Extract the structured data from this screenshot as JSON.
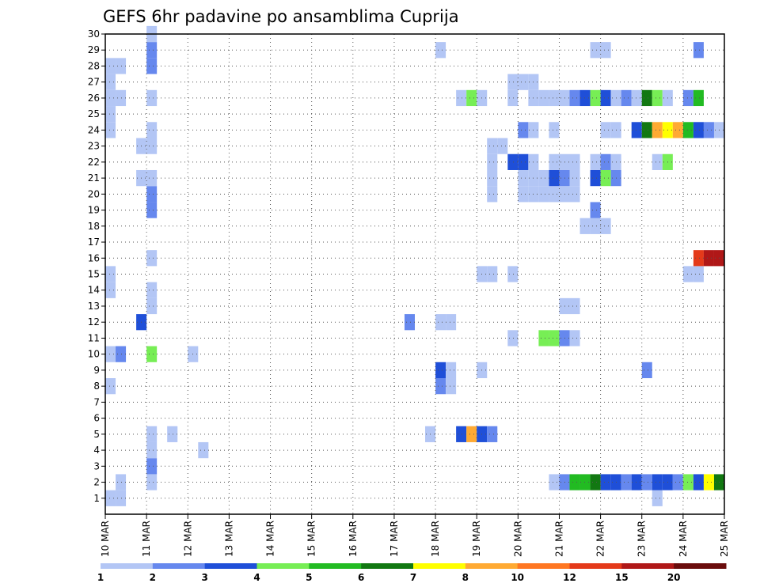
{
  "chart_data": {
    "type": "heatmap",
    "title": "GEFS 6hr padavine po ansamblima Cuprija",
    "xlabel": "",
    "ylabel": "",
    "x_tick_labels": [
      "10 MAR",
      "11 MAR",
      "12 MAR",
      "13 MAR",
      "14 MAR",
      "15 MAR",
      "16 MAR",
      "17 MAR",
      "18 MAR",
      "19 MAR",
      "20 MAR",
      "21 MAR",
      "22 MAR",
      "23 MAR",
      "24 MAR",
      "25 MAR"
    ],
    "x_range_days": [
      0,
      15
    ],
    "y_tick_labels": [
      "1",
      "2",
      "3",
      "4",
      "5",
      "6",
      "7",
      "8",
      "9",
      "10",
      "11",
      "12",
      "13",
      "14",
      "15",
      "16",
      "17",
      "18",
      "19",
      "20",
      "21",
      "22",
      "23",
      "24",
      "25",
      "26",
      "27",
      "28",
      "29",
      "30"
    ],
    "ylim": [
      0,
      30
    ],
    "grid": true,
    "colorbar": {
      "labels": [
        "1",
        "2",
        "3",
        "4",
        "5",
        "6",
        "7",
        "8",
        "10",
        "12",
        "15",
        "20"
      ],
      "colors": [
        "#b3c6f5",
        "#6688ee",
        "#1f4fd8",
        "#77ee55",
        "#22bb22",
        "#127812",
        "#ffff00",
        "#ffaa33",
        "#ff7722",
        "#e43a1a",
        "#b01818",
        "#6a0c0c"
      ]
    },
    "cell_step_days": 0.25,
    "cells": [
      [
        1,
        0.0,
        1
      ],
      [
        1,
        0.25,
        1
      ],
      [
        1,
        13.25,
        1
      ],
      [
        2,
        0.25,
        1
      ],
      [
        2,
        1.0,
        1
      ],
      [
        2,
        10.75,
        1
      ],
      [
        2,
        11.0,
        2
      ],
      [
        2,
        11.25,
        5
      ],
      [
        2,
        11.5,
        5
      ],
      [
        2,
        11.75,
        6
      ],
      [
        2,
        12.0,
        3
      ],
      [
        2,
        12.25,
        3
      ],
      [
        2,
        12.5,
        2
      ],
      [
        2,
        12.75,
        3
      ],
      [
        2,
        13.0,
        2
      ],
      [
        2,
        13.25,
        3
      ],
      [
        2,
        13.5,
        3
      ],
      [
        2,
        13.75,
        2
      ],
      [
        2,
        14.0,
        4
      ],
      [
        2,
        14.25,
        3
      ],
      [
        2,
        14.5,
        7
      ],
      [
        2,
        14.75,
        6
      ],
      [
        3,
        1.0,
        2
      ],
      [
        4,
        1.0,
        1
      ],
      [
        4,
        2.25,
        1
      ],
      [
        5,
        1.0,
        1
      ],
      [
        5,
        1.5,
        1
      ],
      [
        5,
        7.75,
        1
      ],
      [
        5,
        8.5,
        3
      ],
      [
        5,
        8.75,
        8
      ],
      [
        5,
        9.0,
        3
      ],
      [
        5,
        9.25,
        2
      ],
      [
        8,
        0.0,
        1
      ],
      [
        8,
        8.0,
        2
      ],
      [
        8,
        8.25,
        1
      ],
      [
        9,
        8.0,
        3
      ],
      [
        9,
        8.25,
        1
      ],
      [
        9,
        9.0,
        1
      ],
      [
        9,
        13.0,
        2
      ],
      [
        9,
        15.0,
        1
      ],
      [
        10,
        0.0,
        1
      ],
      [
        10,
        0.25,
        2
      ],
      [
        10,
        1.0,
        4
      ],
      [
        10,
        2.0,
        1
      ],
      [
        11,
        9.75,
        1
      ],
      [
        11,
        10.5,
        4
      ],
      [
        11,
        10.75,
        4
      ],
      [
        11,
        11.0,
        2
      ],
      [
        11,
        11.25,
        1
      ],
      [
        12,
        0.75,
        3
      ],
      [
        12,
        7.25,
        2
      ],
      [
        12,
        8.0,
        1
      ],
      [
        12,
        8.25,
        1
      ],
      [
        13,
        1.0,
        1
      ],
      [
        13,
        11.0,
        1
      ],
      [
        13,
        11.25,
        1
      ],
      [
        14,
        0.0,
        1
      ],
      [
        14,
        1.0,
        1
      ],
      [
        15,
        0.0,
        1
      ],
      [
        15,
        9.0,
        1
      ],
      [
        15,
        9.25,
        1
      ],
      [
        15,
        9.75,
        1
      ],
      [
        15,
        14.0,
        1
      ],
      [
        15,
        14.25,
        1
      ],
      [
        16,
        1.0,
        1
      ],
      [
        16,
        14.25,
        10
      ],
      [
        16,
        14.5,
        11
      ],
      [
        16,
        14.75,
        11
      ],
      [
        16,
        15.0,
        7
      ],
      [
        18,
        11.5,
        1
      ],
      [
        18,
        11.75,
        1
      ],
      [
        18,
        12.0,
        1
      ],
      [
        19,
        1.0,
        2
      ],
      [
        19,
        11.75,
        2
      ],
      [
        20,
        1.0,
        2
      ],
      [
        20,
        9.25,
        1
      ],
      [
        20,
        10.0,
        1
      ],
      [
        20,
        10.25,
        1
      ],
      [
        20,
        10.5,
        1
      ],
      [
        20,
        10.75,
        1
      ],
      [
        20,
        11.0,
        1
      ],
      [
        20,
        11.25,
        1
      ],
      [
        21,
        0.75,
        1
      ],
      [
        21,
        1.0,
        1
      ],
      [
        21,
        9.25,
        1
      ],
      [
        21,
        10.0,
        1
      ],
      [
        21,
        10.25,
        1
      ],
      [
        21,
        10.5,
        1
      ],
      [
        21,
        10.75,
        3
      ],
      [
        21,
        11.0,
        2
      ],
      [
        21,
        11.25,
        1
      ],
      [
        21,
        11.75,
        3
      ],
      [
        21,
        12.0,
        4
      ],
      [
        21,
        12.25,
        2
      ],
      [
        22,
        9.25,
        1
      ],
      [
        22,
        9.75,
        3
      ],
      [
        22,
        10.0,
        3
      ],
      [
        22,
        10.25,
        1
      ],
      [
        22,
        10.75,
        1
      ],
      [
        22,
        11.0,
        1
      ],
      [
        22,
        11.25,
        1
      ],
      [
        22,
        11.75,
        1
      ],
      [
        22,
        12.0,
        2
      ],
      [
        22,
        12.25,
        1
      ],
      [
        22,
        13.25,
        1
      ],
      [
        22,
        13.5,
        4
      ],
      [
        23,
        0.75,
        1
      ],
      [
        23,
        1.0,
        1
      ],
      [
        23,
        9.25,
        1
      ],
      [
        23,
        9.5,
        1
      ],
      [
        24,
        0.0,
        1
      ],
      [
        24,
        1.0,
        1
      ],
      [
        24,
        10.0,
        2
      ],
      [
        24,
        10.25,
        1
      ],
      [
        24,
        10.75,
        1
      ],
      [
        24,
        12.0,
        1
      ],
      [
        24,
        12.25,
        1
      ],
      [
        24,
        12.75,
        3
      ],
      [
        24,
        13.0,
        6
      ],
      [
        24,
        13.25,
        8
      ],
      [
        24,
        13.5,
        7
      ],
      [
        24,
        13.75,
        8
      ],
      [
        24,
        14.0,
        5
      ],
      [
        24,
        14.25,
        3
      ],
      [
        24,
        14.5,
        2
      ],
      [
        24,
        14.75,
        1
      ],
      [
        25,
        0.0,
        1
      ],
      [
        26,
        0.0,
        1
      ],
      [
        26,
        0.25,
        1
      ],
      [
        26,
        1.0,
        1
      ],
      [
        26,
        8.5,
        1
      ],
      [
        26,
        8.75,
        4
      ],
      [
        26,
        9.0,
        1
      ],
      [
        26,
        9.75,
        1
      ],
      [
        26,
        10.25,
        1
      ],
      [
        26,
        10.5,
        1
      ],
      [
        26,
        10.75,
        1
      ],
      [
        26,
        11.0,
        1
      ],
      [
        26,
        11.25,
        2
      ],
      [
        26,
        11.5,
        3
      ],
      [
        26,
        11.75,
        4
      ],
      [
        26,
        12.0,
        3
      ],
      [
        26,
        12.25,
        1
      ],
      [
        26,
        12.5,
        2
      ],
      [
        26,
        12.75,
        1
      ],
      [
        26,
        13.0,
        6
      ],
      [
        26,
        13.25,
        4
      ],
      [
        26,
        13.5,
        1
      ],
      [
        26,
        14.0,
        2
      ],
      [
        26,
        14.25,
        5
      ],
      [
        27,
        0.0,
        1
      ],
      [
        27,
        9.75,
        1
      ],
      [
        27,
        10.0,
        1
      ],
      [
        27,
        10.25,
        1
      ],
      [
        28,
        0.0,
        1
      ],
      [
        28,
        0.25,
        1
      ],
      [
        28,
        1.0,
        2
      ],
      [
        29,
        1.0,
        2
      ],
      [
        29,
        8.0,
        1
      ],
      [
        29,
        11.75,
        1
      ],
      [
        29,
        12.0,
        1
      ],
      [
        29,
        14.25,
        2
      ],
      [
        30,
        1.0,
        1
      ]
    ]
  }
}
